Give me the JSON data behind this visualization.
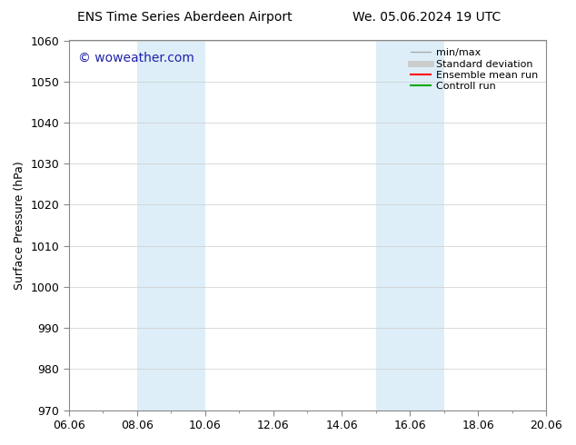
{
  "title_left": "ENS Time Series Aberdeen Airport",
  "title_right": "We. 05.06.2024 19 UTC",
  "ylabel": "Surface Pressure (hPa)",
  "ylim": [
    970,
    1060
  ],
  "yticks": [
    970,
    980,
    990,
    1000,
    1010,
    1020,
    1030,
    1040,
    1050,
    1060
  ],
  "xtick_labels": [
    "06.06",
    "08.06",
    "10.06",
    "12.06",
    "14.06",
    "16.06",
    "18.06",
    "20.06"
  ],
  "xtick_positions": [
    0,
    2,
    4,
    6,
    8,
    10,
    12,
    14
  ],
  "xlim": [
    0,
    14
  ],
  "shaded_regions": [
    {
      "start": 2.0,
      "end": 2.5
    },
    {
      "start": 2.5,
      "end": 4.0
    },
    {
      "start": 9.0,
      "end": 9.5
    },
    {
      "start": 9.5,
      "end": 11.0
    }
  ],
  "shaded_color": "#ddeef8",
  "watermark_text": "© woweather.com",
  "watermark_color": "#2222aa",
  "legend_entries": [
    {
      "label": "min/max",
      "color": "#aaaaaa",
      "lw": 1.0
    },
    {
      "label": "Standard deviation",
      "color": "#cccccc",
      "lw": 5
    },
    {
      "label": "Ensemble mean run",
      "color": "#ff0000",
      "lw": 1.5
    },
    {
      "label": "Controll run",
      "color": "#00aa00",
      "lw": 1.5
    }
  ],
  "bg_color": "#ffffff",
  "grid_color": "#cccccc",
  "spine_color": "#888888",
  "tick_label_fontsize": 9,
  "axis_label_fontsize": 9,
  "title_fontsize": 10,
  "watermark_fontsize": 10
}
